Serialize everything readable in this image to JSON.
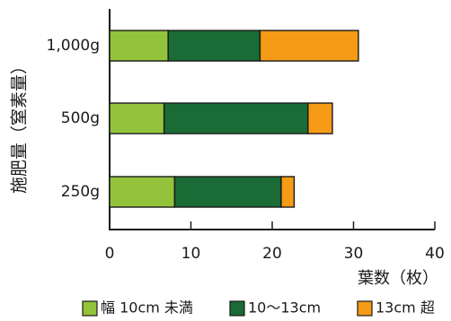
{
  "chart_data": {
    "type": "bar",
    "orientation": "horizontal",
    "stacked": true,
    "categories": [
      "1,000g",
      "500g",
      "250g"
    ],
    "series": [
      {
        "name": "幅 10cm 未満",
        "color": "#93c33b",
        "values": [
          7.2,
          6.7,
          8.0
        ]
      },
      {
        "name": "10〜13cm",
        "color": "#1a6b35",
        "values": [
          11.3,
          17.7,
          13.1
        ]
      },
      {
        "name": "13cm 超",
        "color": "#f59b16",
        "values": [
          12.1,
          3.0,
          1.6
        ]
      }
    ],
    "xlim": [
      0,
      40
    ],
    "xticks": [
      "0",
      "10",
      "20",
      "30",
      "40"
    ],
    "xlabel": "葉数（枚）",
    "ylabel": "施肥量（窒素量）",
    "legend_position": "bottom",
    "grid": false
  }
}
